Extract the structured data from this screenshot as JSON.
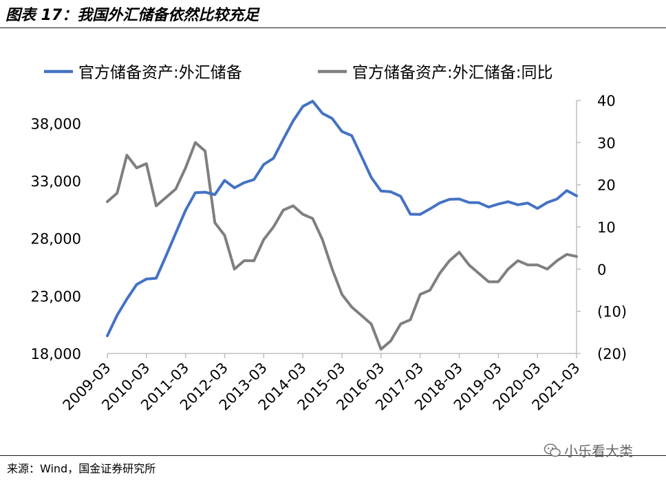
{
  "header": {
    "title": "图表 17：我国外汇储备依然比较充足"
  },
  "footer": {
    "source": "来源：Wind，国金证券研究所",
    "watermark": "小乐看大类"
  },
  "chart_data": {
    "type": "line",
    "legend_position": "top",
    "grid": false,
    "x_tick_labels": [
      "2009-03",
      "2010-03",
      "2011-03",
      "2012-03",
      "2013-03",
      "2014-03",
      "2015-03",
      "2016-03",
      "2017-03",
      "2018-03",
      "2019-03",
      "2020-03",
      "2021-03"
    ],
    "left_axis": {
      "ylim": [
        18000,
        40000
      ],
      "ticks": [
        18000,
        23000,
        28000,
        33000,
        38000
      ],
      "tick_labels": [
        "18,000",
        "23,000",
        "28,000",
        "33,000",
        "38,000"
      ]
    },
    "right_axis": {
      "ylim": [
        -20,
        40
      ],
      "ticks": [
        -20,
        -10,
        0,
        10,
        20,
        30,
        40
      ],
      "tick_labels": [
        "(20)",
        "(10)",
        "0",
        "10",
        "20",
        "30",
        "40"
      ],
      "negative_color": "#e0001b"
    },
    "series": [
      {
        "name": "官方储备资产:外汇储备",
        "axis": "left",
        "color": "#4472c4",
        "x": [
          "2009-03",
          "2009-06",
          "2009-09",
          "2009-12",
          "2010-03",
          "2010-06",
          "2010-09",
          "2010-12",
          "2011-03",
          "2011-06",
          "2011-09",
          "2011-12",
          "2012-03",
          "2012-06",
          "2012-09",
          "2012-12",
          "2013-03",
          "2013-06",
          "2013-09",
          "2013-12",
          "2014-03",
          "2014-06",
          "2014-09",
          "2014-12",
          "2015-03",
          "2015-06",
          "2015-09",
          "2015-12",
          "2016-03",
          "2016-06",
          "2016-09",
          "2016-12",
          "2017-03",
          "2017-06",
          "2017-09",
          "2017-12",
          "2018-03",
          "2018-06",
          "2018-09",
          "2018-12",
          "2019-03",
          "2019-06",
          "2019-09",
          "2019-12",
          "2020-03",
          "2020-06",
          "2020-09",
          "2020-12",
          "2021-03"
        ],
        "values": [
          19537,
          21316,
          22726,
          23992,
          24471,
          24543,
          26483,
          28473,
          30447,
          31975,
          32017,
          31811,
          33050,
          32400,
          32850,
          33116,
          34426,
          34967,
          36627,
          38213,
          39481,
          39932,
          38877,
          38430,
          37300,
          36938,
          35141,
          33304,
          32126,
          32052,
          31664,
          30105,
          30091,
          30568,
          31085,
          31399,
          31428,
          31121,
          31104,
          30727,
          30988,
          31192,
          30924,
          31079,
          30606,
          31123,
          31426,
          32165,
          31700
        ]
      },
      {
        "name": "官方储备资产:外汇储备:同比",
        "axis": "right",
        "color": "#7f7f7f",
        "x": [
          "2009-03",
          "2009-06",
          "2009-09",
          "2009-12",
          "2010-03",
          "2010-06",
          "2010-09",
          "2010-12",
          "2011-03",
          "2011-06",
          "2011-09",
          "2011-12",
          "2012-03",
          "2012-06",
          "2012-09",
          "2012-12",
          "2013-03",
          "2013-06",
          "2013-09",
          "2013-12",
          "2014-03",
          "2014-06",
          "2014-09",
          "2014-12",
          "2015-03",
          "2015-06",
          "2015-09",
          "2015-12",
          "2016-03",
          "2016-06",
          "2016-09",
          "2016-12",
          "2017-03",
          "2017-06",
          "2017-09",
          "2017-12",
          "2018-03",
          "2018-06",
          "2018-09",
          "2018-12",
          "2019-03",
          "2019-06",
          "2019-09",
          "2019-12",
          "2020-03",
          "2020-06",
          "2020-09",
          "2020-12",
          "2021-03"
        ],
        "values": [
          16,
          18,
          27,
          24,
          25,
          15,
          17,
          19,
          24,
          30,
          28,
          11,
          8,
          0,
          2,
          2,
          7,
          10,
          14,
          15,
          13,
          12,
          7,
          0,
          -6,
          -9,
          -11,
          -13,
          -19,
          -17,
          -13,
          -12,
          -6,
          -5,
          -1,
          2,
          4,
          1,
          -1,
          -3,
          -3,
          0,
          2,
          1,
          1,
          0,
          2,
          3.5,
          3
        ]
      }
    ]
  }
}
